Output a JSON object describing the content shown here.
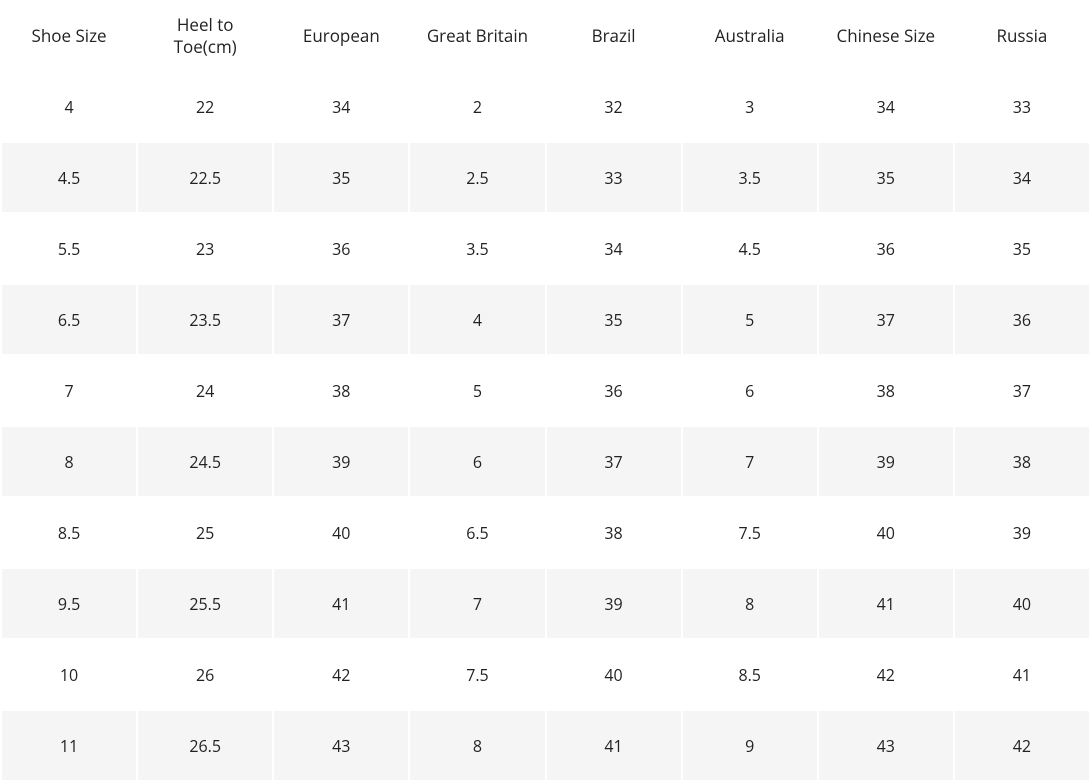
{
  "table": {
    "columns": [
      "Shoe Size",
      "Heel to Toe(cm)",
      "European",
      "Great Britain",
      "Brazil",
      "Australia",
      "Chinese Size",
      "Russia"
    ],
    "rows": [
      [
        "4",
        "22",
        "34",
        "2",
        "32",
        "3",
        "34",
        "33"
      ],
      [
        "4.5",
        "22.5",
        "35",
        "2.5",
        "33",
        "3.5",
        "35",
        "34"
      ],
      [
        "5.5",
        "23",
        "36",
        "3.5",
        "34",
        "4.5",
        "36",
        "35"
      ],
      [
        "6.5",
        "23.5",
        "37",
        "4",
        "35",
        "5",
        "37",
        "36"
      ],
      [
        "7",
        "24",
        "38",
        "5",
        "36",
        "6",
        "38",
        "37"
      ],
      [
        "8",
        "24.5",
        "39",
        "6",
        "37",
        "7",
        "39",
        "38"
      ],
      [
        "8.5",
        "25",
        "40",
        "6.5",
        "38",
        "7.5",
        "40",
        "39"
      ],
      [
        "9.5",
        "25.5",
        "41",
        "7",
        "39",
        "8",
        "41",
        "40"
      ],
      [
        "10",
        "26",
        "42",
        "7.5",
        "40",
        "8.5",
        "42",
        "41"
      ],
      [
        "11",
        "26.5",
        "43",
        "8",
        "41",
        "9",
        "43",
        "42"
      ]
    ],
    "header_bg": "#ffffff",
    "row_bg": "#ffffff",
    "alt_row_bg": "#f5f5f5",
    "text_color": "#222222",
    "header_fontsize": 17,
    "cell_fontsize": 16
  }
}
